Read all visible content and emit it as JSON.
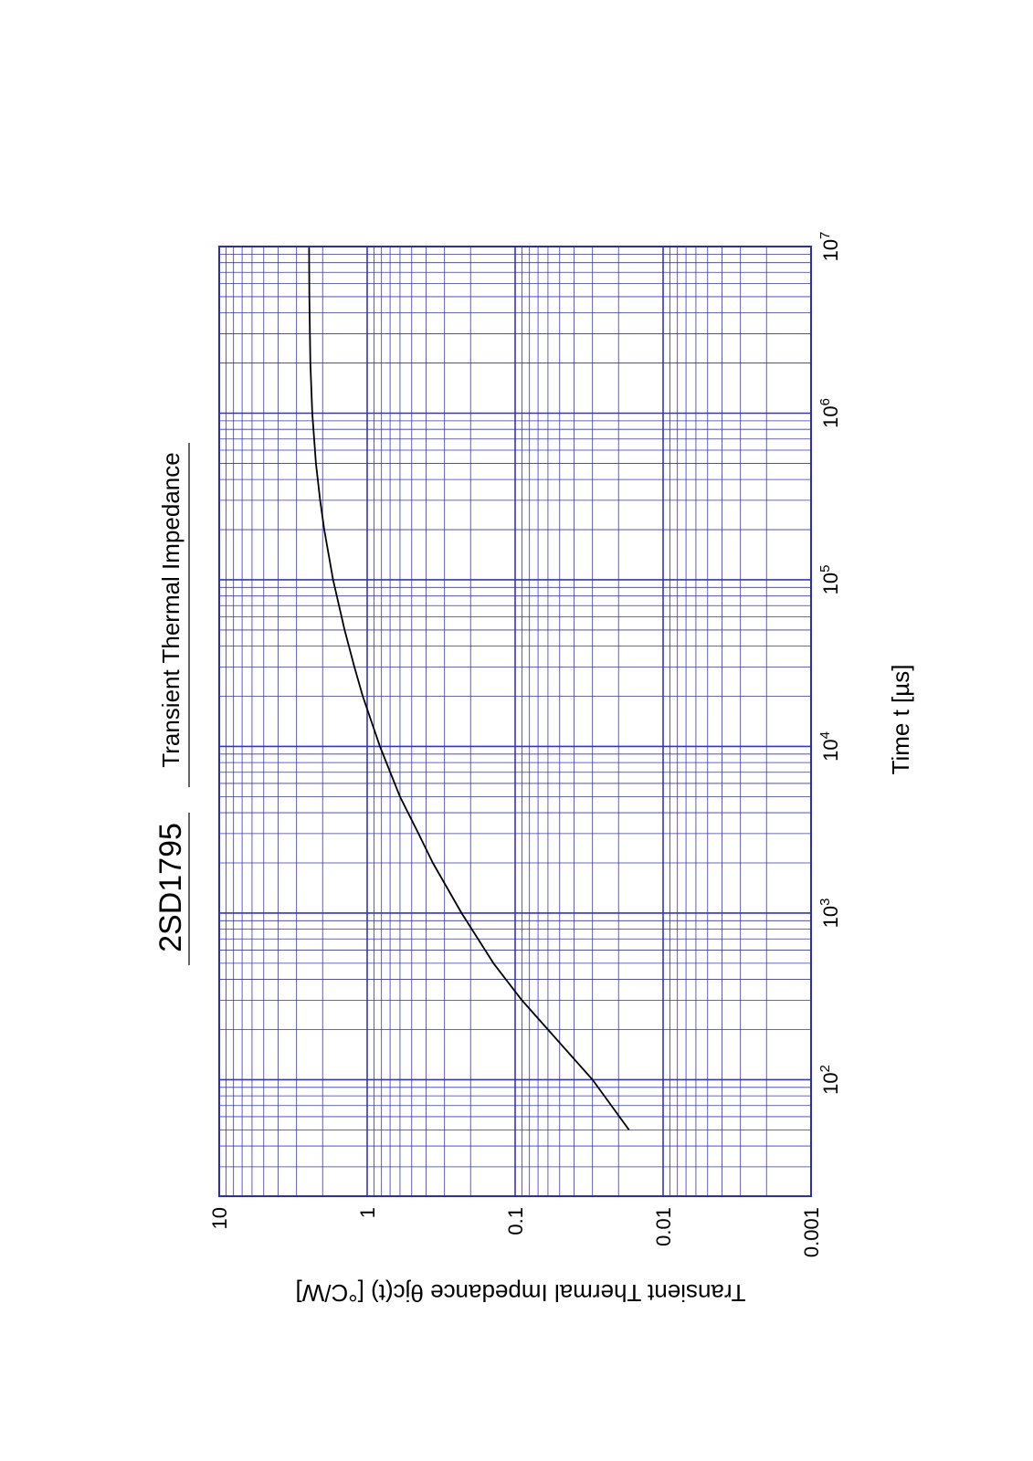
{
  "chart_data": {
    "type": "line",
    "orientation": "rotated-90-ccw",
    "part_number": "2SD1795",
    "title": "Transient Thermal Impedance",
    "xlabel": "Time  t  [µs]",
    "ylabel_main": "Transient Thermal Impedance   θjc(t)  [°C/W]",
    "x_scale": "log",
    "y_scale": "log",
    "xlim": [
      20,
      10000000
    ],
    "ylim": [
      0.001,
      10
    ],
    "x_ticks": [
      {
        "base": "10",
        "exp": "2"
      },
      {
        "base": "10",
        "exp": "3"
      },
      {
        "base": "10",
        "exp": "4"
      },
      {
        "base": "10",
        "exp": "5"
      },
      {
        "base": "10",
        "exp": "6"
      },
      {
        "base": "10",
        "exp": "7"
      }
    ],
    "y_ticks": [
      "10",
      "1",
      "0.1",
      "0.01",
      "0.001"
    ],
    "grid": true,
    "grid_color": "#3333cc",
    "line_color": "#000000",
    "series": [
      {
        "values": [
          [
            50,
            0.017
          ],
          [
            100,
            0.03
          ],
          [
            200,
            0.06
          ],
          [
            300,
            0.09
          ],
          [
            500,
            0.14
          ],
          [
            1000,
            0.23
          ],
          [
            2000,
            0.36
          ],
          [
            3000,
            0.45
          ],
          [
            5000,
            0.6
          ],
          [
            10000,
            0.82
          ],
          [
            20000,
            1.07
          ],
          [
            30000,
            1.22
          ],
          [
            50000,
            1.42
          ],
          [
            100000,
            1.7
          ],
          [
            200000,
            1.95
          ],
          [
            300000,
            2.08
          ],
          [
            500000,
            2.22
          ],
          [
            1000000,
            2.35
          ],
          [
            2000000,
            2.42
          ],
          [
            5000000,
            2.46
          ],
          [
            10000000,
            2.47
          ]
        ]
      }
    ]
  }
}
